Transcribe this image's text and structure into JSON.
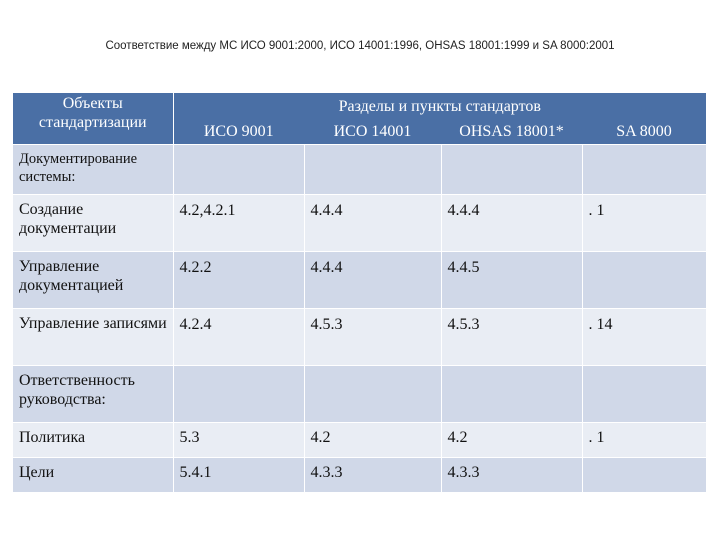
{
  "title": "Соответствие между МС ИСО 9001:2000, ИСО 14001:1996, OHSAS 18001:1999 и SA 8000:2001",
  "table": {
    "header_objects": "Объекты стандартизации",
    "header_sections": "Разделы и пункты стандартов",
    "standards": [
      "ИСО 9001",
      "ИСО 14001",
      "OHSAS 18001*",
      "SA 8000"
    ],
    "rows": [
      {
        "object": "Документирование системы:",
        "values": [
          "",
          "",
          "",
          ""
        ]
      },
      {
        "object": "Создание документации",
        "values": [
          "4.2,4.2.1",
          "4.4.4",
          "4.4.4",
          ". 1"
        ]
      },
      {
        "object": "Управление документацией",
        "values": [
          "4.2.2",
          "4.4.4",
          "4.4.5",
          ""
        ]
      },
      {
        "object": "Управление записями",
        "values": [
          "4.2.4",
          "4.5.3",
          "4.5.3",
          ". 14"
        ]
      },
      {
        "object": "Ответственность руководства:",
        "values": [
          "",
          "",
          "",
          ""
        ]
      },
      {
        "object": "Политика",
        "values": [
          "5.3",
          "4.2",
          "4.2",
          ". 1"
        ]
      },
      {
        "object": "Цели",
        "values": [
          "5.4.1",
          "4.3.3",
          "4.3.3",
          ""
        ]
      }
    ]
  },
  "colors": {
    "header_bg": "#4a6fa5",
    "row_odd_bg": "#d0d8e8",
    "row_even_bg": "#e9edf4"
  }
}
